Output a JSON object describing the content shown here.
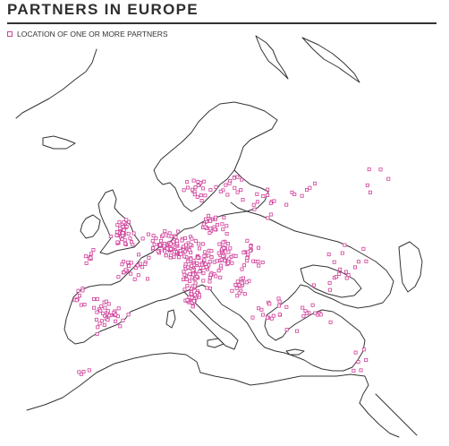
{
  "title": "PARTNERS IN EUROPE",
  "legend": {
    "label": "LOCATION OF ONE OR MORE PARTNERS",
    "marker_icon": "square-outline-icon"
  },
  "colors": {
    "partner_marker": "#d0409a",
    "coastline": "#333333",
    "heading": "#2e2e2e"
  }
}
